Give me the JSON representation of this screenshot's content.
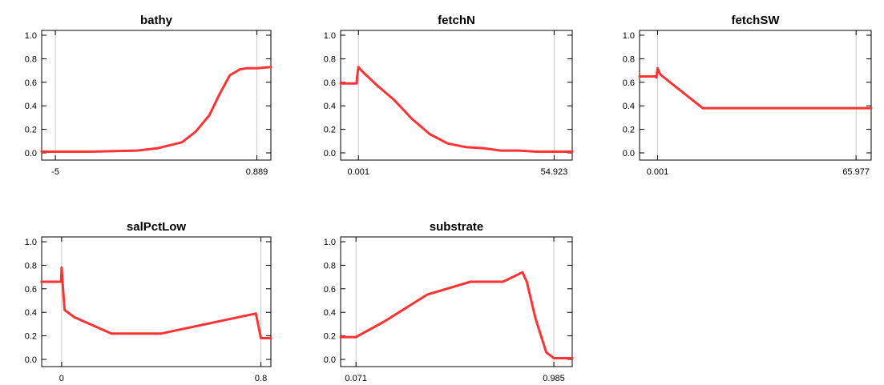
{
  "chart_data": [
    {
      "type": "line",
      "title": "bathy",
      "xlabel": "",
      "ylabel": "",
      "x_ticks": [
        "-5",
        "0.889"
      ],
      "y_ticks": [
        "0.0",
        "0.2",
        "0.4",
        "0.6",
        "0.8",
        "1.0"
      ],
      "ylim": [
        0,
        1
      ],
      "xlim": [
        -5.4,
        1.3
      ],
      "grid": true,
      "line_color": "#ff3333",
      "x": [
        -5.4,
        -4.0,
        -2.6,
        -2.0,
        -1.3,
        -0.9,
        -0.5,
        -0.2,
        0.1,
        0.4,
        0.6,
        0.9,
        1.3
      ],
      "y": [
        0.01,
        0.01,
        0.02,
        0.04,
        0.09,
        0.18,
        0.32,
        0.5,
        0.66,
        0.71,
        0.72,
        0.72,
        0.73
      ]
    },
    {
      "type": "line",
      "title": "fetchN",
      "xlabel": "",
      "ylabel": "",
      "x_ticks": [
        "0.001",
        "54.923"
      ],
      "y_ticks": [
        "0.0",
        "0.2",
        "0.4",
        "0.6",
        "0.8",
        "1.0"
      ],
      "ylim": [
        0,
        1
      ],
      "xlim": [
        -5,
        60
      ],
      "grid": true,
      "line_color": "#ff3333",
      "x": [
        -5,
        -0.5,
        -0.4,
        0.001,
        0.5,
        1.5,
        5,
        10,
        15,
        20,
        25,
        30,
        35,
        40,
        45,
        50,
        54.923,
        60
      ],
      "y": [
        0.59,
        0.59,
        0.64,
        0.73,
        0.71,
        0.68,
        0.58,
        0.45,
        0.29,
        0.16,
        0.08,
        0.05,
        0.04,
        0.02,
        0.02,
        0.01,
        0.01,
        0.01
      ]
    },
    {
      "type": "line",
      "title": "fetchSW",
      "xlabel": "",
      "ylabel": "",
      "x_ticks": [
        "0.001",
        "65.977"
      ],
      "y_ticks": [
        "0.0",
        "0.2",
        "0.4",
        "0.6",
        "0.8",
        "1.0"
      ],
      "ylim": [
        0,
        1
      ],
      "xlim": [
        -6,
        71
      ],
      "grid": true,
      "line_color": "#ff3333",
      "x": [
        -6,
        -0.5,
        -0.4,
        0.001,
        0.6,
        1.2,
        15,
        65.977,
        71
      ],
      "y": [
        0.65,
        0.65,
        0.64,
        0.72,
        0.68,
        0.66,
        0.38,
        0.38,
        0.38
      ]
    },
    {
      "type": "line",
      "title": "salPctLow",
      "xlabel": "",
      "ylabel": "",
      "x_ticks": [
        "0",
        "0.8"
      ],
      "y_ticks": [
        "0.0",
        "0.2",
        "0.4",
        "0.6",
        "0.8",
        "1.0"
      ],
      "ylim": [
        0,
        1
      ],
      "xlim": [
        -0.08,
        0.84
      ],
      "grid": true,
      "line_color": "#ff3333",
      "x": [
        -0.08,
        -0.002,
        0.0,
        0.005,
        0.012,
        0.05,
        0.2,
        0.4,
        0.78,
        0.8,
        0.84
      ],
      "y": [
        0.66,
        0.66,
        0.78,
        0.62,
        0.42,
        0.36,
        0.22,
        0.22,
        0.39,
        0.18,
        0.18
      ]
    },
    {
      "type": "line",
      "title": "substrate",
      "xlabel": "",
      "ylabel": "",
      "x_ticks": [
        "0.071",
        "0.985"
      ],
      "y_ticks": [
        "0.0",
        "0.2",
        "0.4",
        "0.6",
        "0.8",
        "1.0"
      ],
      "ylim": [
        0,
        1
      ],
      "xlim": [
        0.0,
        1.07
      ],
      "grid": true,
      "line_color": "#ff3333",
      "x": [
        0.0,
        0.071,
        0.2,
        0.4,
        0.6,
        0.75,
        0.84,
        0.86,
        0.9,
        0.95,
        0.985,
        1.07
      ],
      "y": [
        0.19,
        0.19,
        0.32,
        0.55,
        0.66,
        0.66,
        0.74,
        0.66,
        0.35,
        0.06,
        0.01,
        0.01
      ]
    }
  ]
}
